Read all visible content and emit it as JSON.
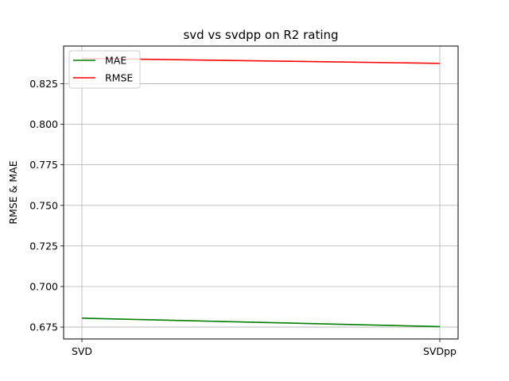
{
  "chart_data": {
    "type": "line",
    "title": "svd vs svdpp on R2 rating",
    "xlabel": "",
    "ylabel": "RMSE & MAE",
    "categories": [
      "SVD",
      "SVDpp"
    ],
    "series": [
      {
        "name": "MAE",
        "values": [
          0.6805,
          0.6753
        ],
        "color": "#008000"
      },
      {
        "name": "RMSE",
        "values": [
          0.8406,
          0.8375
        ],
        "color": "#ff0000"
      }
    ],
    "ylim": [
      0.6677,
      0.8482
    ],
    "yticks": [
      0.675,
      0.7,
      0.725,
      0.75,
      0.775,
      0.8,
      0.825
    ],
    "ytick_labels": [
      "0.675",
      "0.700",
      "0.725",
      "0.750",
      "0.775",
      "0.800",
      "0.825"
    ],
    "grid": true,
    "legend_position": "top-left"
  }
}
